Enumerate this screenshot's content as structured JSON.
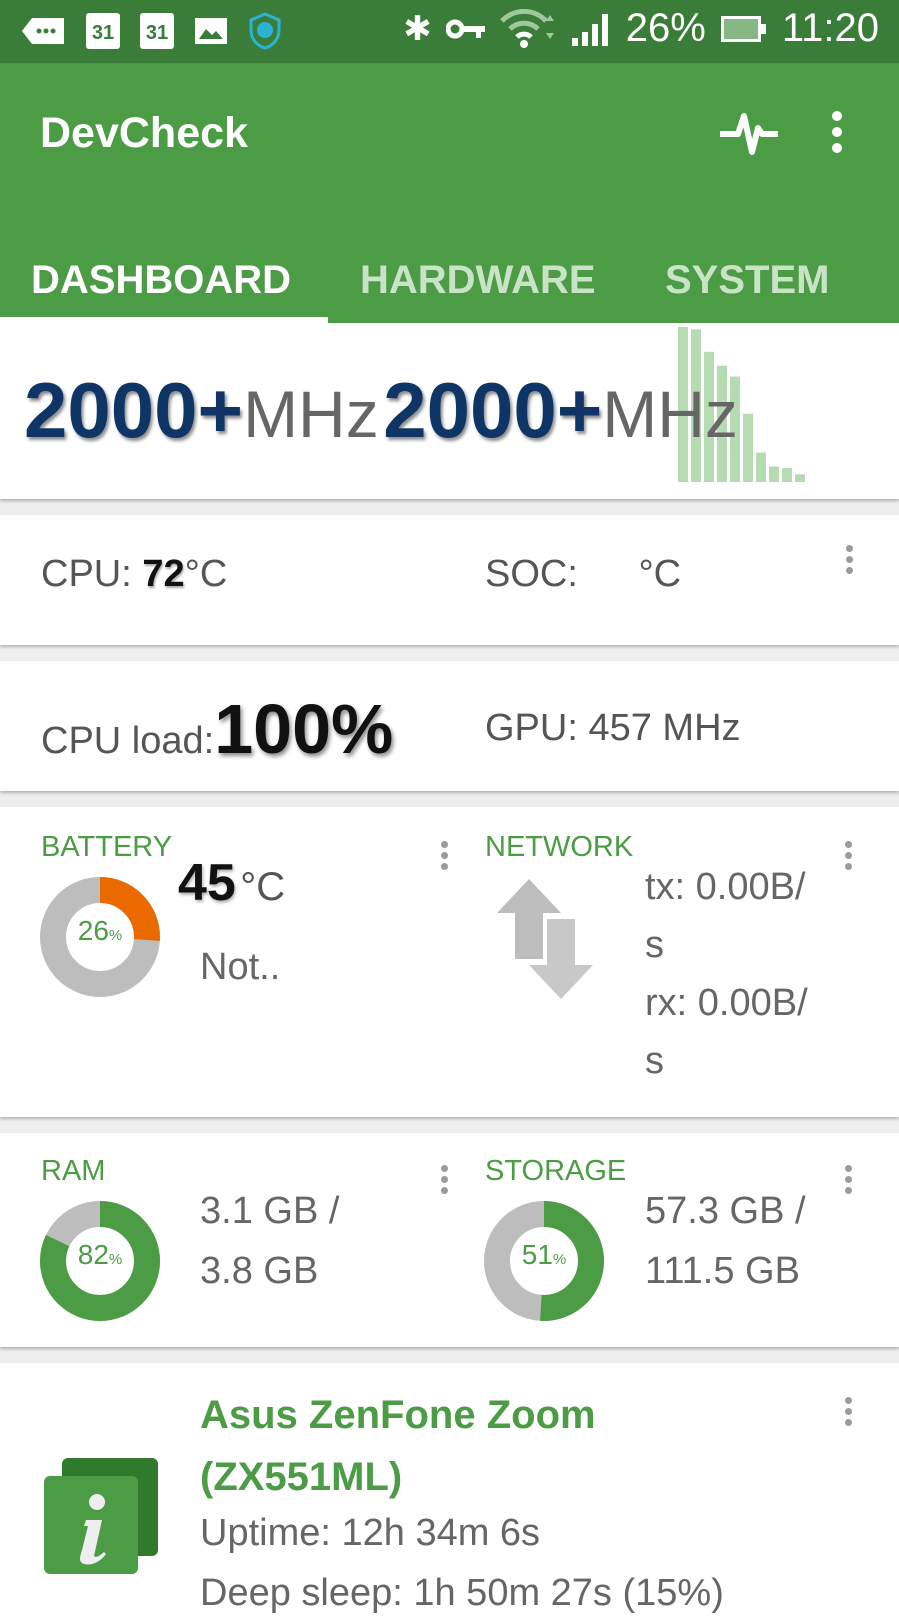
{
  "status_bar": {
    "icons": [
      "more-notifications-icon",
      "calendar-icon",
      "calendar-icon",
      "image-icon",
      "shield-m-icon",
      "bluetooth-icon",
      "vpn-key-icon",
      "wifi-icon",
      "signal-icon",
      "battery-icon"
    ],
    "calendar_day": "31",
    "battery_percent": "26%",
    "time": "11:20"
  },
  "app_bar": {
    "title": "DevCheck",
    "actions": [
      "pulse-icon",
      "more-vert-icon"
    ]
  },
  "tabs": [
    {
      "label": "DASHBOARD",
      "active": true
    },
    {
      "label": "HARDWARE",
      "active": false
    },
    {
      "label": "SYSTEM",
      "active": false
    }
  ],
  "cpu_freq": {
    "core1_value": "2000+",
    "core2_value": "2000+",
    "unit": "MHz",
    "history_bars": [
      1.0,
      0.985,
      0.84,
      0.75,
      0.68,
      0.44,
      0.19,
      0.1,
      0.09,
      0.05
    ],
    "bar_color": "#a9d3a5"
  },
  "temps": {
    "cpu_label": "CPU:",
    "cpu_value": "72",
    "cpu_unit": "°C",
    "soc_label": "SOC:",
    "soc_unit": "°C"
  },
  "load": {
    "cpu_label": "CPU load:",
    "cpu_value": "100%",
    "gpu_text": "GPU: 457 MHz"
  },
  "battery": {
    "label": "BATTERY",
    "percent": 26,
    "percent_text": "26",
    "percent_sign": "%",
    "temp_value": "45",
    "temp_unit": "°C",
    "status": "Not.."
  },
  "network": {
    "label": "NETWORK",
    "tx_line1": "tx: 0.00B/",
    "tx_line2": "s",
    "rx_line1": "rx: 0.00B/",
    "rx_line2": "s"
  },
  "ram": {
    "label": "RAM",
    "percent": 82,
    "percent_text": "82",
    "percent_sign": "%",
    "line1": "3.1 GB /",
    "line2": "3.8 GB"
  },
  "storage": {
    "label": "STORAGE",
    "percent": 51,
    "percent_text": "51",
    "percent_sign": "%",
    "line1": "57.3 GB /",
    "line2": "111.5 GB"
  },
  "device": {
    "name_line1": "Asus ZenFone Zoom",
    "name_line2": "(ZX551ML)",
    "uptime": "Uptime: 12h 34m 6s",
    "deep_sleep": "Deep sleep: 1h 50m 27s (15%)"
  },
  "colors": {
    "primary": "#4c9c45",
    "status_bar": "#3a7d38",
    "freq_value": "#0f3566"
  }
}
